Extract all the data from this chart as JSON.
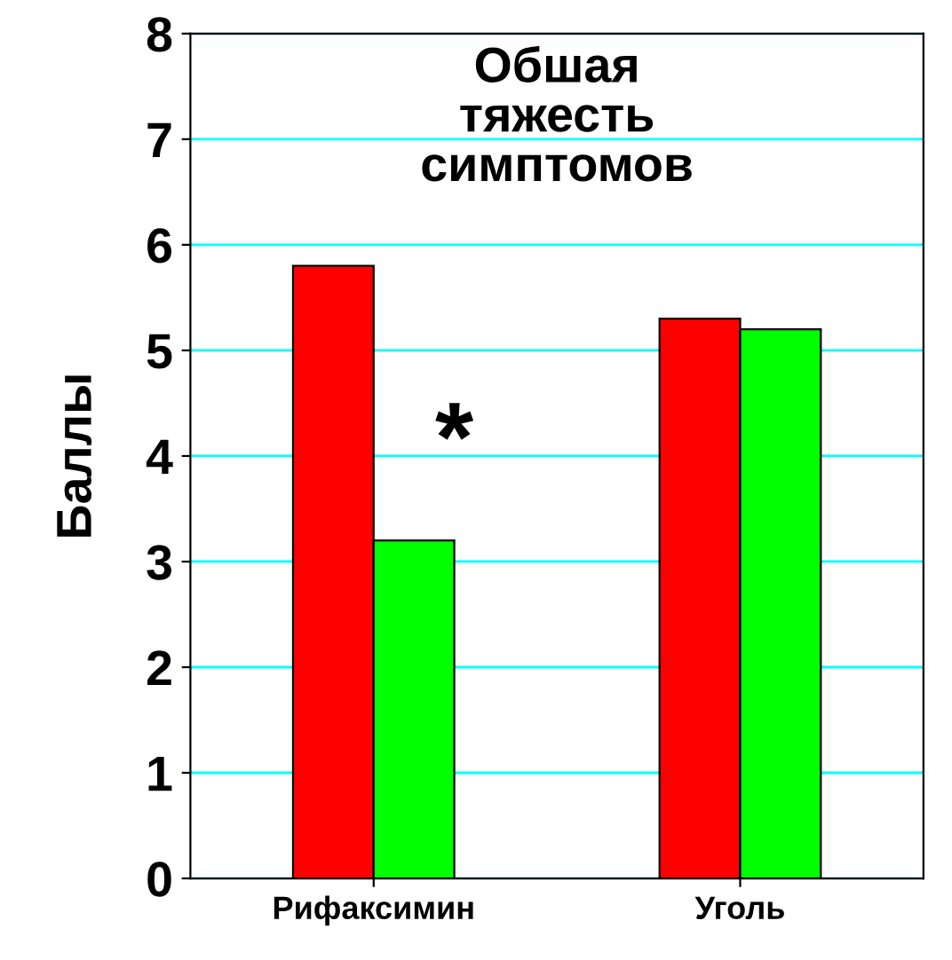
{
  "chart_data": {
    "type": "bar",
    "title": "Обшая\nтяжесть\nсимптомов",
    "ylabel": "Баллы",
    "categories": [
      "Рифаксимин",
      "Уголь"
    ],
    "series": [
      {
        "color": "#ff0000",
        "values": [
          5.8,
          5.3
        ]
      },
      {
        "color": "#00ff00",
        "values": [
          3.2,
          5.2
        ]
      }
    ],
    "ylim": [
      0,
      8
    ],
    "yticks": [
      0,
      1,
      2,
      3,
      4,
      5,
      6,
      7,
      8
    ],
    "grid": "y",
    "annotations": [
      {
        "text": "*",
        "x": "Рифаксимин",
        "y": 4.1
      }
    ]
  }
}
